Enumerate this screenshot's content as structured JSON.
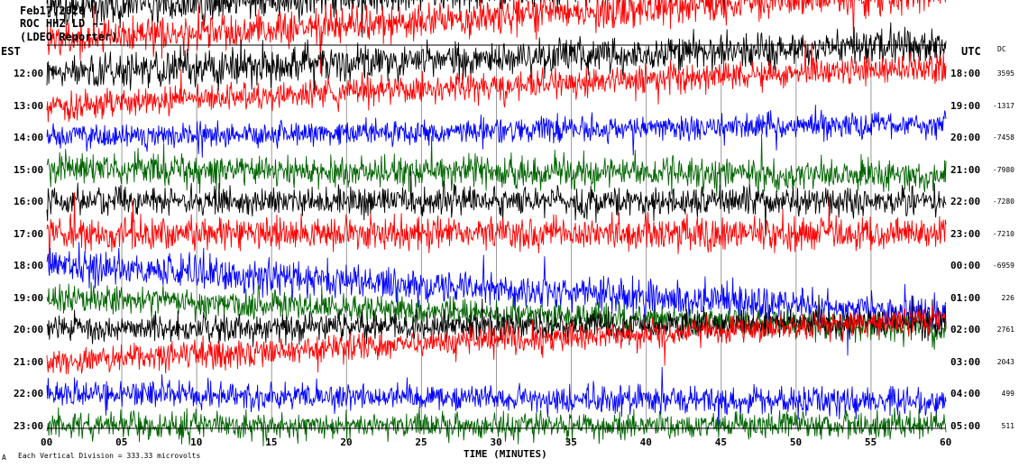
{
  "header": {
    "date": "Feb17,2026",
    "station": "ROC HHZ LD --",
    "network": "(LDEO Reporter)"
  },
  "axes": {
    "left_label": "EST",
    "right_label": "UTC",
    "dc_label": "DC",
    "xlabel": "TIME (MINUTES)",
    "x_ticks": [
      "00",
      "05",
      "10",
      "15",
      "20",
      "25",
      "30",
      "35",
      "40",
      "45",
      "50",
      "55",
      "60"
    ]
  },
  "footer": {
    "mark": "A",
    "scale_text": "Each Vertical Division =  333.33 microvolts"
  },
  "colors": {
    "black": "#000000",
    "red": "#ff0000",
    "blue": "#0000ff",
    "green": "#006400",
    "grid": "#9a9a9a"
  },
  "chart_data": {
    "type": "line",
    "title": "Feb17,2026",
    "xlabel": "TIME (MINUTES)",
    "ylabel": "EST",
    "xlim": [
      0,
      60
    ],
    "grid": true,
    "color_cycle": [
      "black",
      "red",
      "blue",
      "green"
    ],
    "rows": [
      {
        "est": "",
        "utc": "",
        "dc": "",
        "color": "black",
        "amp": 0.9,
        "drift": -1.1
      },
      {
        "est": "",
        "utc": "",
        "dc": "",
        "color": "red",
        "amp": 0.85,
        "drift": -1.5
      },
      {
        "est": "12:00",
        "utc": "18:00",
        "dc": "3595",
        "color": "black",
        "amp": 0.85,
        "drift": -0.9
      },
      {
        "est": "13:00",
        "utc": "19:00",
        "dc": "-1317",
        "color": "red",
        "amp": 0.7,
        "drift": -1.2
      },
      {
        "est": "14:00",
        "utc": "20:00",
        "dc": "-7458",
        "color": "blue",
        "amp": 0.6,
        "drift": -0.4
      },
      {
        "est": "15:00",
        "utc": "21:00",
        "dc": "-7980",
        "color": "green",
        "amp": 0.75,
        "drift": 0.2
      },
      {
        "est": "16:00",
        "utc": "22:00",
        "dc": "-7280",
        "color": "black",
        "amp": 0.7,
        "drift": 0
      },
      {
        "est": "17:00",
        "utc": "23:00",
        "dc": "-7210",
        "color": "red",
        "amp": 0.8,
        "drift": 0
      },
      {
        "est": "18:00",
        "utc": "00:00",
        "dc": "-6959",
        "color": "blue",
        "amp": 0.8,
        "drift": 1.5
      },
      {
        "est": "19:00",
        "utc": "01:00",
        "dc": "226",
        "color": "green",
        "amp": 0.7,
        "drift": 1.0
      },
      {
        "est": "20:00",
        "utc": "02:00",
        "dc": "2761",
        "color": "black",
        "amp": 0.7,
        "drift": -0.2
      },
      {
        "est": "21:00",
        "utc": "03:00",
        "dc": "2043",
        "color": "red",
        "amp": 0.7,
        "drift": -1.3
      },
      {
        "est": "22:00",
        "utc": "04:00",
        "dc": "499",
        "color": "blue",
        "amp": 0.65,
        "drift": 0.3
      },
      {
        "est": "23:00",
        "utc": "05:00",
        "dc": "511",
        "color": "green",
        "amp": 0.65,
        "drift": 0
      }
    ]
  }
}
